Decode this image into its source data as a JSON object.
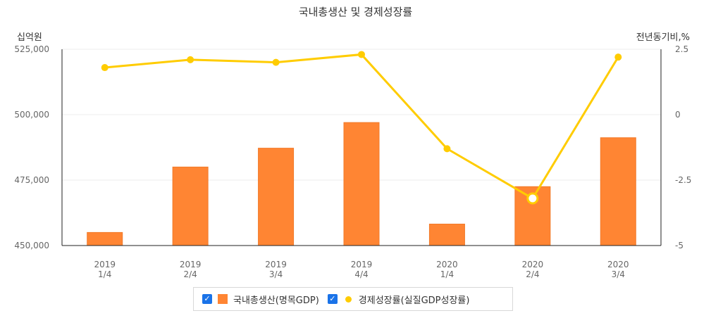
{
  "chart_data": {
    "type": "bar",
    "title": "국내총생산 및 경제성장률",
    "categories": [
      [
        "2019",
        "1/4"
      ],
      [
        "2019",
        "2/4"
      ],
      [
        "2019",
        "3/4"
      ],
      [
        "2019",
        "4/4"
      ],
      [
        "2020",
        "1/4"
      ],
      [
        "2020",
        "2/4"
      ],
      [
        "2020",
        "3/4"
      ]
    ],
    "y_left": {
      "unit": "십억원",
      "range": [
        450000,
        525000
      ],
      "ticks": [
        450000,
        475000,
        500000,
        525000
      ],
      "tick_labels": [
        "450,000",
        "475,000",
        "500,000",
        "525,000"
      ]
    },
    "y_right": {
      "unit": "전년동기비,%",
      "range": [
        -5,
        2.5
      ],
      "ticks": [
        -5,
        -2.5,
        0,
        2.5
      ],
      "tick_labels": [
        "-5",
        "-2.5",
        "0",
        "2.5"
      ]
    },
    "series": [
      {
        "name": "국내총생산(명목GDP)",
        "type": "bar",
        "axis": "left",
        "color": "#ff8533",
        "values": [
          455000,
          480000,
          487200,
          497000,
          458200,
          472500,
          491200
        ]
      },
      {
        "name": "경제성장률(실질GDP성장률)",
        "type": "line",
        "axis": "right",
        "color": "#ffcc00",
        "values": [
          1.8,
          2.1,
          2.0,
          2.3,
          -1.3,
          -3.2,
          2.2
        ]
      }
    ],
    "highlighted_point_index": 5,
    "grid": true,
    "legend_position": "bottom-center"
  },
  "legend": {
    "check_glyph": "✓"
  }
}
